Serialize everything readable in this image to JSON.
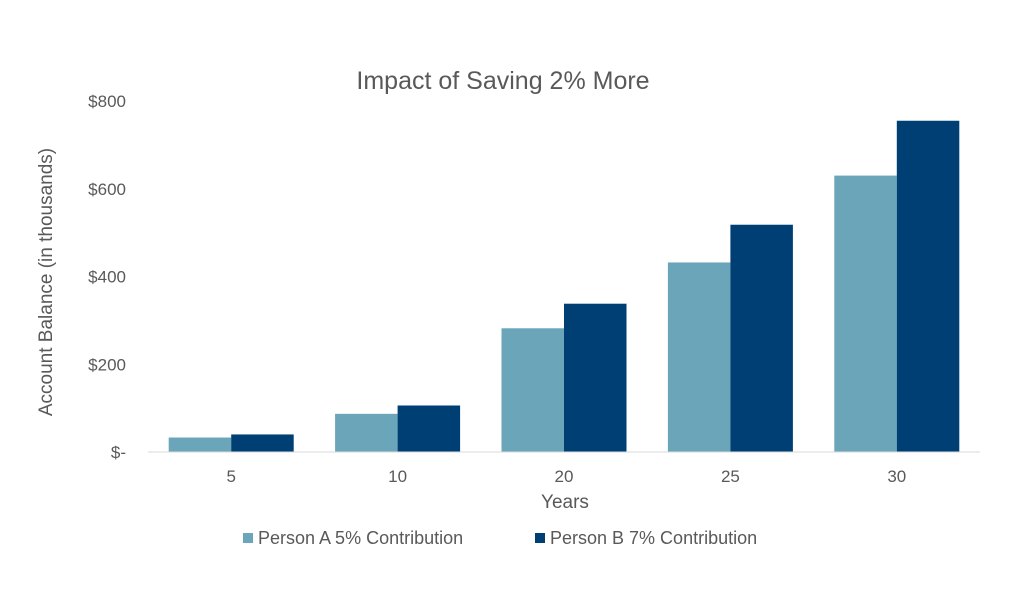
{
  "chart_data": {
    "type": "bar",
    "title": "Impact of Saving 2% More",
    "xlabel": "Years",
    "ylabel": "Account Balance (in thousands)",
    "categories": [
      "5",
      "10",
      "20",
      "25",
      "30"
    ],
    "series": [
      {
        "name": "Person A 5% Contribution",
        "color": "#6aa5ba",
        "values": [
          33,
          87,
          282,
          432,
          630
        ]
      },
      {
        "name": "Person B 7% Contribution",
        "color": "#003f74",
        "values": [
          40,
          106,
          338,
          518,
          755
        ]
      }
    ],
    "ylim": [
      0,
      800
    ],
    "yticks": [
      0,
      200,
      400,
      600,
      800
    ],
    "ytick_labels": [
      "$-",
      "$200",
      "$400",
      "$600",
      "$800"
    ],
    "grid": false,
    "legend_position": "bottom"
  }
}
